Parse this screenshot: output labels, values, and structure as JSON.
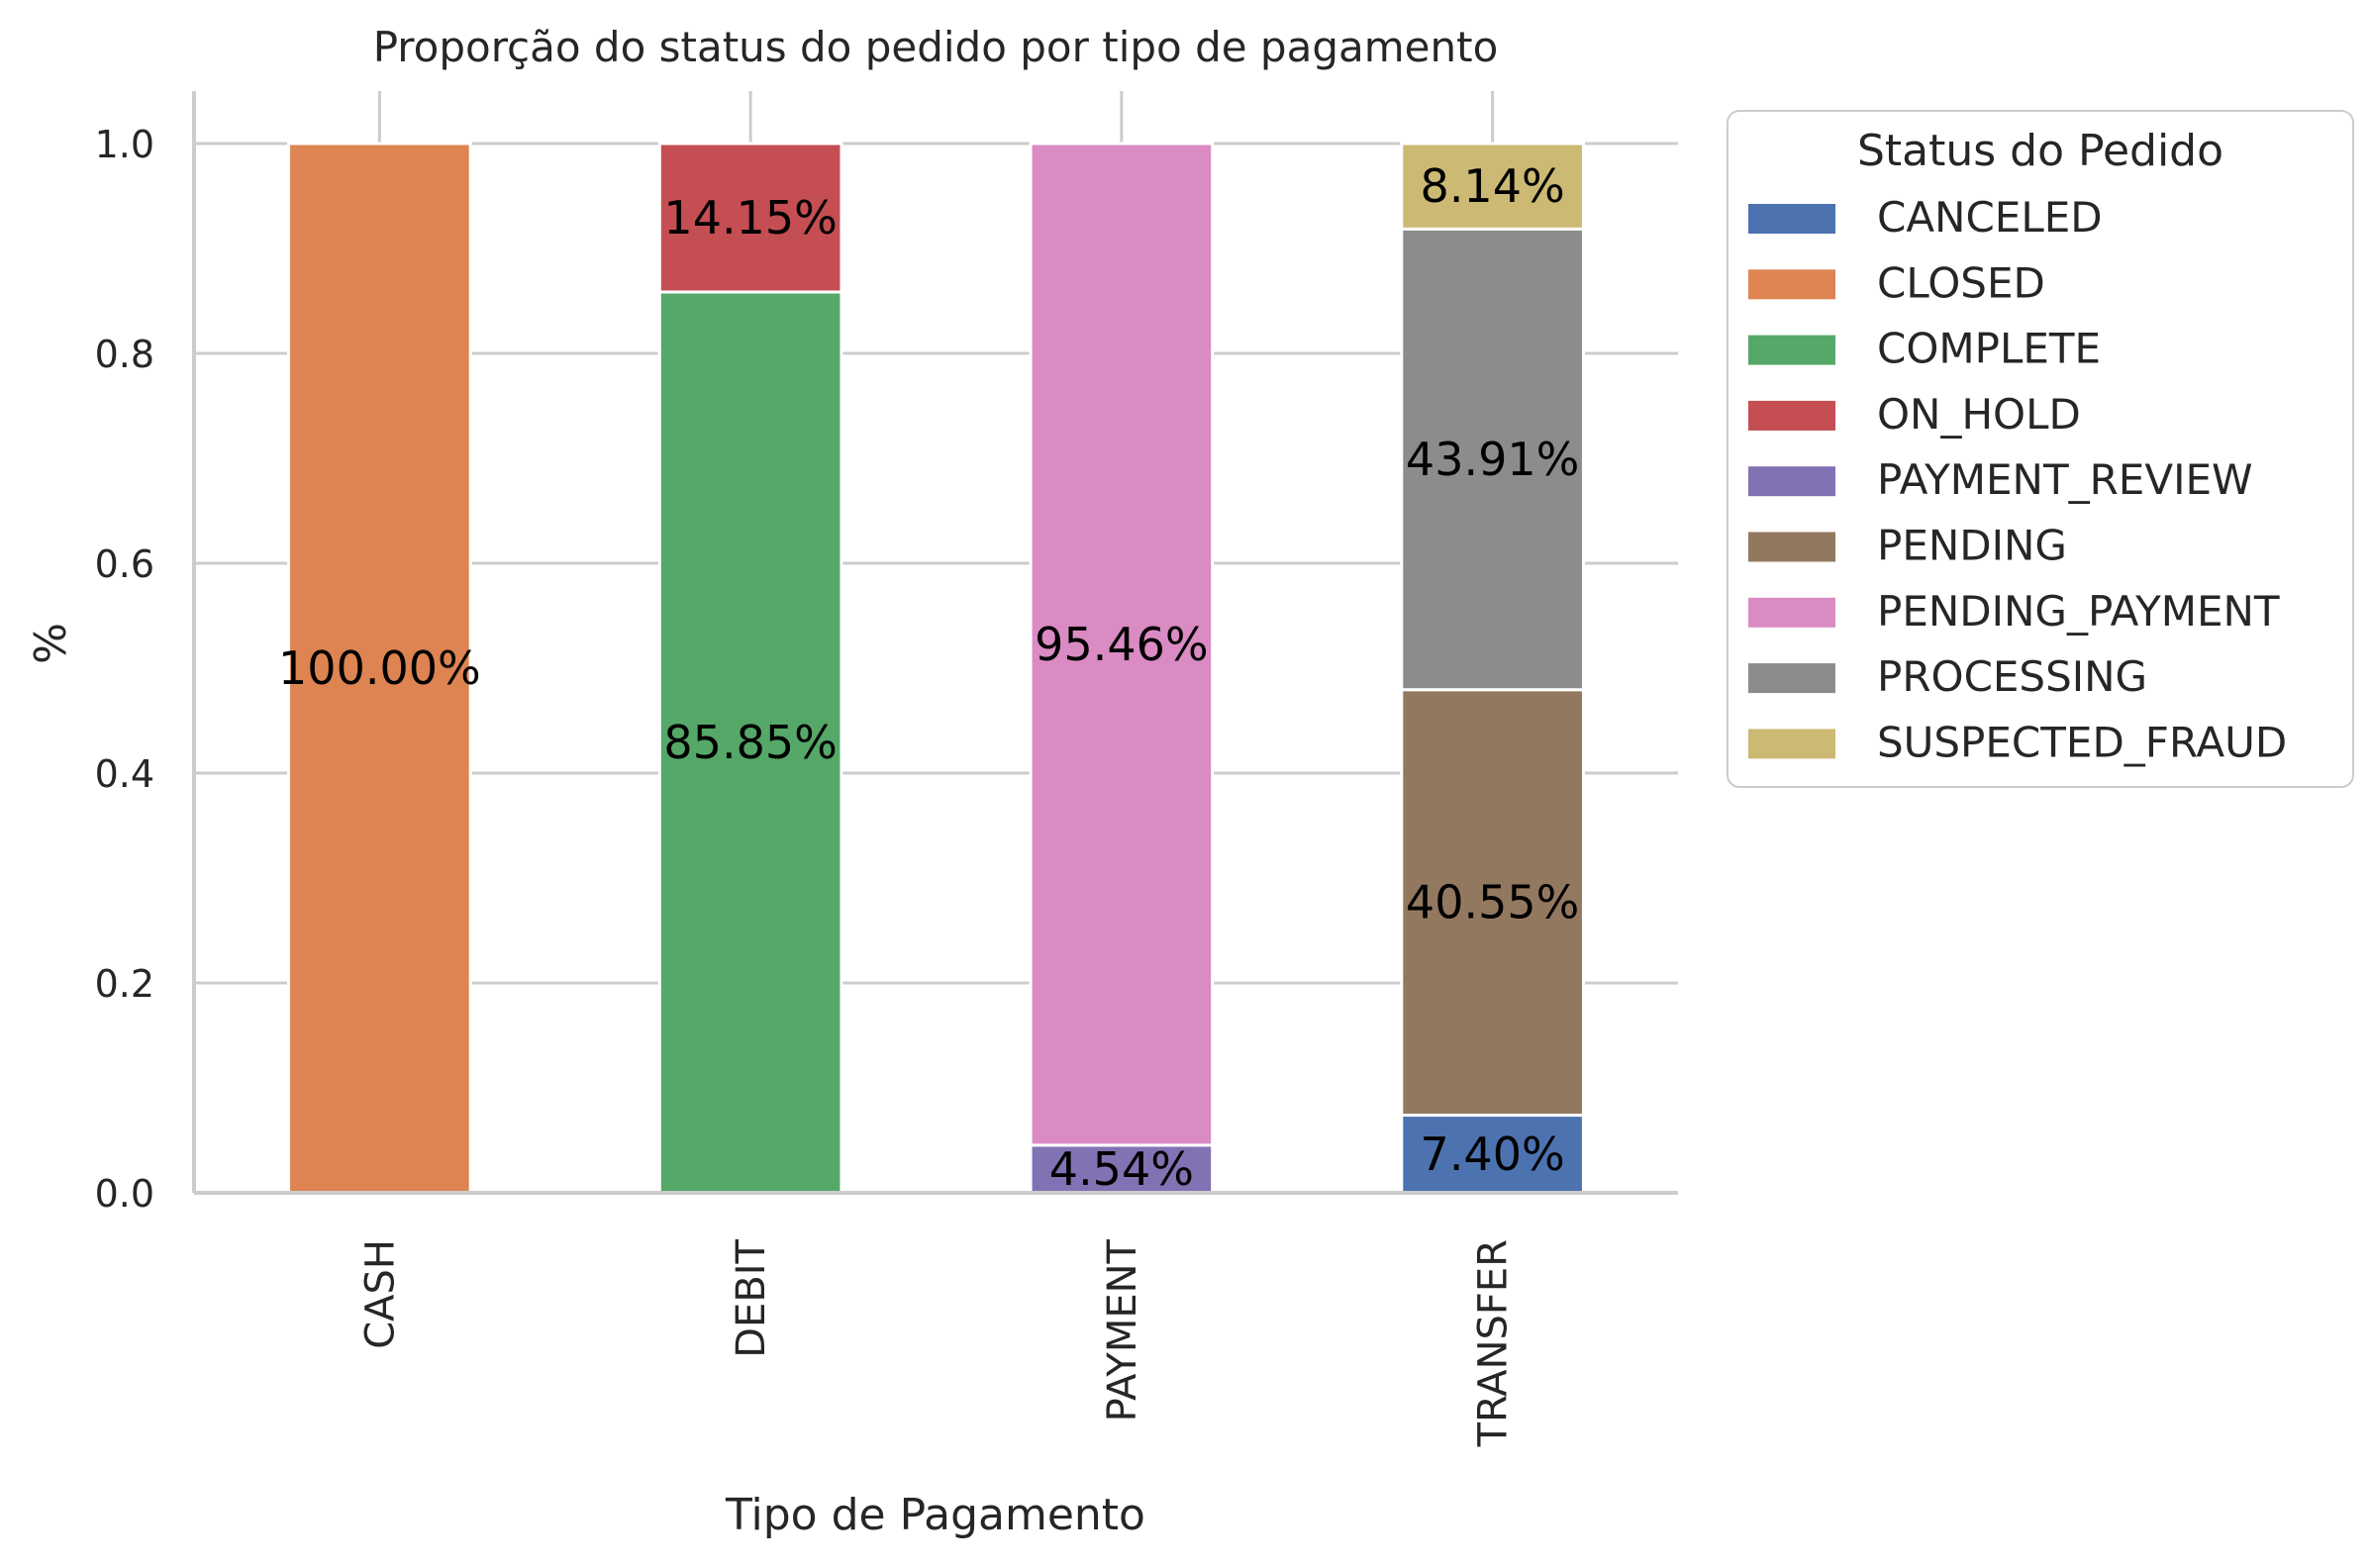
{
  "chart_data": {
    "type": "bar",
    "stacked": true,
    "title": "Proporção do status do pedido por tipo de pagamento",
    "xlabel": "Tipo de Pagamento",
    "ylabel": "%",
    "ylim": [
      0,
      1.05
    ],
    "yticks": [
      "0.0",
      "0.2",
      "0.4",
      "0.6",
      "0.8",
      "1.0"
    ],
    "ytick_values": [
      0.0,
      0.2,
      0.4,
      0.6,
      0.8,
      1.0
    ],
    "grid": true,
    "legend_position": "outside-right",
    "categories": [
      "CASH",
      "DEBIT",
      "PAYMENT",
      "TRANSFER"
    ],
    "legend": {
      "title": "Status do Pedido"
    },
    "series": [
      {
        "name": "CANCELED",
        "color": "#4c72b0",
        "values": [
          0,
          0,
          0,
          0.074
        ],
        "labels": [
          "",
          "",
          "",
          "7.40%"
        ]
      },
      {
        "name": "CLOSED",
        "color": "#dd8452",
        "values": [
          1.0,
          0,
          0,
          0
        ],
        "labels": [
          "100.00%",
          "",
          "",
          ""
        ]
      },
      {
        "name": "COMPLETE",
        "color": "#55a868",
        "values": [
          0,
          0.8585,
          0,
          0
        ],
        "labels": [
          "",
          "85.85%",
          "",
          ""
        ]
      },
      {
        "name": "ON_HOLD",
        "color": "#c44e52",
        "values": [
          0,
          0.1415,
          0,
          0
        ],
        "labels": [
          "",
          "14.15%",
          "",
          ""
        ]
      },
      {
        "name": "PAYMENT_REVIEW",
        "color": "#8172b3",
        "values": [
          0,
          0,
          0.0454,
          0
        ],
        "labels": [
          "",
          "",
          "4.54%",
          ""
        ]
      },
      {
        "name": "PENDING",
        "color": "#937860",
        "values": [
          0,
          0,
          0,
          0.4055
        ],
        "labels": [
          "",
          "",
          "",
          "40.55%"
        ]
      },
      {
        "name": "PENDING_PAYMENT",
        "color": "#da8bc3",
        "values": [
          0,
          0,
          0.9546,
          0
        ],
        "labels": [
          "",
          "",
          "95.46%",
          ""
        ]
      },
      {
        "name": "PROCESSING",
        "color": "#8c8c8c",
        "values": [
          0,
          0,
          0,
          0.4391
        ],
        "labels": [
          "",
          "",
          "",
          "43.91%"
        ]
      },
      {
        "name": "SUSPECTED_FRAUD",
        "color": "#ccb974",
        "values": [
          0,
          0,
          0,
          0.0814
        ],
        "labels": [
          "",
          "",
          "",
          "8.14%"
        ]
      }
    ]
  }
}
